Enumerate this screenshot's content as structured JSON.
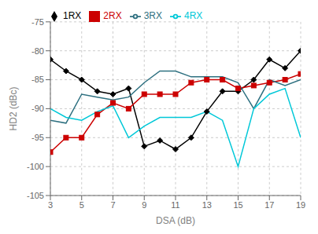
{
  "chart_data": {
    "type": "line",
    "xlabel": "DSA (dB)",
    "ylabel": "HD2 (dBc)",
    "x": [
      3,
      4,
      5,
      6,
      7,
      8,
      9,
      10,
      11,
      12,
      13,
      14,
      15,
      16,
      17,
      18,
      19
    ],
    "series": [
      {
        "name": "1RX",
        "color": "#000000",
        "marker": "diamond",
        "values": [
          -81.5,
          -83.5,
          -85.0,
          -87.0,
          -87.5,
          -86.5,
          -96.5,
          -95.5,
          -97.0,
          -95.0,
          -90.5,
          -87.0,
          -87.0,
          -85.0,
          -81.5,
          -83.0,
          -80.0
        ]
      },
      {
        "name": "2RX",
        "color": "#cc0000",
        "marker": "square",
        "values": [
          -97.5,
          -95.0,
          -95.0,
          -91.0,
          -89.0,
          -90.0,
          -87.5,
          -87.5,
          -87.5,
          -85.5,
          -85.0,
          -85.0,
          -86.5,
          -86.0,
          -85.5,
          -85.0,
          -84.0
        ]
      },
      {
        "name": "3RX",
        "color": "#2e7080",
        "values": [
          -92.0,
          -92.5,
          -87.5,
          -88.0,
          -88.5,
          -88.0,
          -85.5,
          -83.5,
          -83.5,
          -84.5,
          -84.5,
          -84.5,
          -85.5,
          -90.0,
          -85.0,
          -86.0,
          -85.0
        ]
      },
      {
        "name": "4RX",
        "color": "#00c8d8",
        "values": [
          -90.0,
          -91.5,
          -92.0,
          -90.5,
          -89.5,
          -95.0,
          -93.0,
          -91.5,
          -91.5,
          -91.5,
          -90.5,
          -92.0,
          -100.0,
          -90.0,
          -87.5,
          -86.5,
          -95.0
        ]
      }
    ],
    "xlim": [
      3,
      19
    ],
    "ylim": [
      -105,
      -75
    ],
    "xticks": [
      3,
      5,
      7,
      9,
      11,
      13,
      15,
      17,
      19
    ],
    "yticks": [
      -105,
      -100,
      -95,
      -90,
      -85,
      -80,
      -75
    ],
    "grid": true,
    "legend": "upper left"
  }
}
